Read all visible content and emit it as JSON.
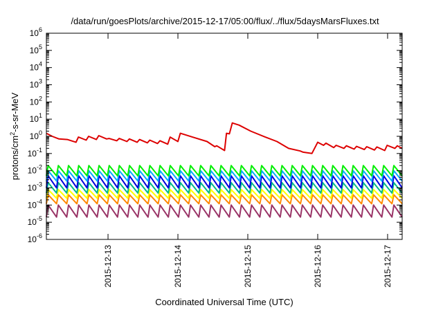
{
  "chart_data": {
    "type": "line",
    "title": "/data/run/goesPlots/archive/2015-12-17/05:00/flux/../flux/5daysMarsFluxes.txt",
    "xlabel": "Coordinated Universal Time (UTC)",
    "ylabel_parts": [
      "protons/cm",
      "2",
      "-s-sr-MeV"
    ],
    "yscale": "log",
    "ylim": [
      1e-06,
      1000000.0
    ],
    "xlim": [
      "2015-12-12T02:50",
      "2015-12-17T05:00"
    ],
    "y_ticks": [
      {
        "value": 1e-06,
        "base": "10",
        "exp": "-6"
      },
      {
        "value": 1e-05,
        "base": "10",
        "exp": "-5"
      },
      {
        "value": 0.0001,
        "base": "10",
        "exp": "-4"
      },
      {
        "value": 0.001,
        "base": "10",
        "exp": "-3"
      },
      {
        "value": 0.01,
        "base": "10",
        "exp": "-2"
      },
      {
        "value": 0.1,
        "base": "10",
        "exp": "-1"
      },
      {
        "value": 1.0,
        "base": "10",
        "exp": "0"
      },
      {
        "value": 10.0,
        "base": "10",
        "exp": "1"
      },
      {
        "value": 100.0,
        "base": "10",
        "exp": "2"
      },
      {
        "value": 1000.0,
        "base": "10",
        "exp": "3"
      },
      {
        "value": 10000.0,
        "base": "10",
        "exp": "4"
      },
      {
        "value": 100000.0,
        "base": "10",
        "exp": "5"
      },
      {
        "value": 1000000.0,
        "base": "10",
        "exp": "6"
      }
    ],
    "x_ticks": [
      {
        "value": "2015-12-13T00:00",
        "label": "2015-12-13"
      },
      {
        "value": "2015-12-14T00:00",
        "label": "2015-12-14"
      },
      {
        "value": "2015-12-15T00:00",
        "label": "2015-12-15"
      },
      {
        "value": "2015-12-16T00:00",
        "label": "2015-12-16"
      },
      {
        "value": "2015-12-17T00:00",
        "label": "2015-12-17"
      }
    ],
    "grid": false,
    "legend": "none",
    "series": [
      {
        "color": "#dd0000",
        "x": [
          "2015-12-12T02:50",
          "2015-12-12T04:50",
          "2015-12-12T07:10",
          "2015-12-12T10:00",
          "2015-12-12T13:00",
          "2015-12-12T13:50",
          "2015-12-12T16:30",
          "2015-12-12T17:20",
          "2015-12-12T20:00",
          "2015-12-12T20:50",
          "2015-12-12T23:30",
          "2015-12-13T00:20",
          "2015-12-13T03:00",
          "2015-12-13T03:50",
          "2015-12-13T06:30",
          "2015-12-13T07:20",
          "2015-12-13T10:00",
          "2015-12-13T10:50",
          "2015-12-13T13:30",
          "2015-12-13T14:20",
          "2015-12-13T17:00",
          "2015-12-13T17:50",
          "2015-12-13T20:30",
          "2015-12-13T21:20",
          "2015-12-14T00:00",
          "2015-12-14T00:50",
          "2015-12-14T05:00",
          "2015-12-14T10:00",
          "2015-12-14T12:40",
          "2015-12-14T13:20",
          "2015-12-14T16:00",
          "2015-12-14T16:40",
          "2015-12-14T17:40",
          "2015-12-14T18:40",
          "2015-12-14T21:00",
          "2015-12-15T01:00",
          "2015-12-15T06:00",
          "2015-12-15T10:00",
          "2015-12-15T14:00",
          "2015-12-15T18:00",
          "2015-12-15T19:00",
          "2015-12-15T22:00",
          "2015-12-16T00:00",
          "2015-12-16T02:00",
          "2015-12-16T02:50",
          "2015-12-16T05:30",
          "2015-12-16T06:20",
          "2015-12-16T09:00",
          "2015-12-16T09:50",
          "2015-12-16T12:30",
          "2015-12-16T13:20",
          "2015-12-16T16:00",
          "2015-12-16T16:50",
          "2015-12-16T19:30",
          "2015-12-16T20:20",
          "2015-12-16T23:00",
          "2015-12-16T23:50",
          "2015-12-17T02:30",
          "2015-12-17T03:20",
          "2015-12-17T05:00"
        ],
        "y": [
          1.5,
          1.0,
          0.7,
          0.65,
          0.45,
          0.9,
          0.6,
          1.0,
          0.65,
          1.1,
          0.7,
          0.75,
          0.55,
          0.75,
          0.5,
          0.7,
          0.45,
          0.65,
          0.42,
          0.6,
          0.38,
          0.55,
          0.35,
          0.9,
          0.5,
          1.5,
          0.9,
          0.5,
          0.25,
          0.28,
          0.15,
          1.5,
          1.4,
          6.0,
          4.5,
          2.0,
          0.9,
          0.5,
          0.2,
          0.14,
          0.12,
          0.1,
          0.45,
          0.3,
          0.4,
          0.22,
          0.3,
          0.2,
          0.28,
          0.18,
          0.26,
          0.17,
          0.25,
          0.16,
          0.24,
          0.15,
          0.3,
          0.2,
          0.28,
          0.2
        ]
      },
      {
        "color": "#00ee00",
        "x_start": "2015-12-12T02:50",
        "x_end": "2015-12-17T05:00",
        "cycles": 35,
        "low": 0.005,
        "high": 0.02
      },
      {
        "color": "#00aaff",
        "x_start": "2015-12-12T02:50",
        "x_end": "2015-12-17T05:00",
        "cycles": 35,
        "low": 0.0025,
        "high": 0.01
      },
      {
        "color": "#0000dd",
        "x_start": "2015-12-12T02:50",
        "x_end": "2015-12-17T05:00",
        "cycles": 35,
        "low": 0.001,
        "high": 0.005
      },
      {
        "color": "#00bb88",
        "x_start": "2015-12-12T02:50",
        "x_end": "2015-12-17T05:00",
        "cycles": 35,
        "low": 0.0005,
        "high": 0.002
      },
      {
        "color": "#ffff00",
        "x_start": "2015-12-12T02:50",
        "x_end": "2015-12-17T05:00",
        "cycles": 35,
        "low": 0.00025,
        "high": 0.0008
      },
      {
        "color": "#ff8800",
        "x_start": "2015-12-12T02:50",
        "x_end": "2015-12-17T05:00",
        "cycles": 35,
        "low": 0.00012,
        "high": 0.0004
      },
      {
        "color": "#993366",
        "x_start": "2015-12-12T02:50",
        "x_end": "2015-12-17T05:00",
        "cycles": 35,
        "low": 2e-05,
        "high": 0.0001
      }
    ]
  }
}
